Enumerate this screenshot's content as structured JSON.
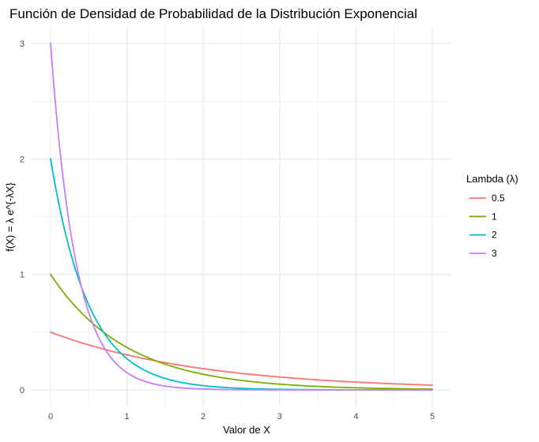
{
  "chart_data": {
    "type": "line",
    "title": "Función de Densidad de Probabilidad de la Distribución Exponencial",
    "xlabel": "Valor de X",
    "ylabel": "f(X) = λ e^{-λX}",
    "xlim": [
      0,
      5
    ],
    "ylim": [
      0,
      3
    ],
    "x_ticks": [
      "0",
      "1",
      "2",
      "3",
      "4",
      "5"
    ],
    "y_ticks": [
      "0",
      "1",
      "2",
      "3"
    ],
    "grid": true,
    "legend_position": "right",
    "legend_title": "Lambda (λ)",
    "series": [
      {
        "name": "0.5",
        "color": "#f8766d",
        "x": [
          0,
          0.25,
          0.5,
          0.75,
          1,
          1.5,
          2,
          2.5,
          3,
          3.5,
          4,
          4.5,
          5
        ],
        "y": [
          0.5,
          0.441,
          0.389,
          0.344,
          0.303,
          0.236,
          0.184,
          0.143,
          0.112,
          0.087,
          0.068,
          0.053,
          0.041
        ]
      },
      {
        "name": "1",
        "color": "#7cae00",
        "x": [
          0,
          0.25,
          0.5,
          0.75,
          1,
          1.25,
          1.5,
          2,
          2.5,
          3,
          3.5,
          4,
          4.5,
          5
        ],
        "y": [
          1.0,
          0.779,
          0.607,
          0.472,
          0.368,
          0.287,
          0.223,
          0.135,
          0.082,
          0.05,
          0.03,
          0.018,
          0.011,
          0.007
        ]
      },
      {
        "name": "2",
        "color": "#00bfc4",
        "x": [
          0,
          0.1,
          0.2,
          0.3,
          0.4,
          0.5,
          0.75,
          1,
          1.25,
          1.5,
          2,
          2.5,
          3,
          4,
          5
        ],
        "y": [
          2.0,
          1.637,
          1.341,
          1.098,
          0.899,
          0.736,
          0.446,
          0.271,
          0.164,
          0.1,
          0.037,
          0.013,
          0.005,
          0.001,
          0.0
        ]
      },
      {
        "name": "3",
        "color": "#c77cff",
        "x": [
          0,
          0.05,
          0.1,
          0.15,
          0.2,
          0.3,
          0.4,
          0.5,
          0.6,
          0.8,
          1,
          1.25,
          1.5,
          2,
          2.5,
          3,
          4,
          5
        ],
        "y": [
          3.0,
          2.582,
          2.222,
          1.913,
          1.646,
          1.22,
          0.904,
          0.669,
          0.496,
          0.272,
          0.149,
          0.071,
          0.033,
          0.007,
          0.002,
          0.0,
          0.0,
          0.0
        ]
      }
    ]
  }
}
